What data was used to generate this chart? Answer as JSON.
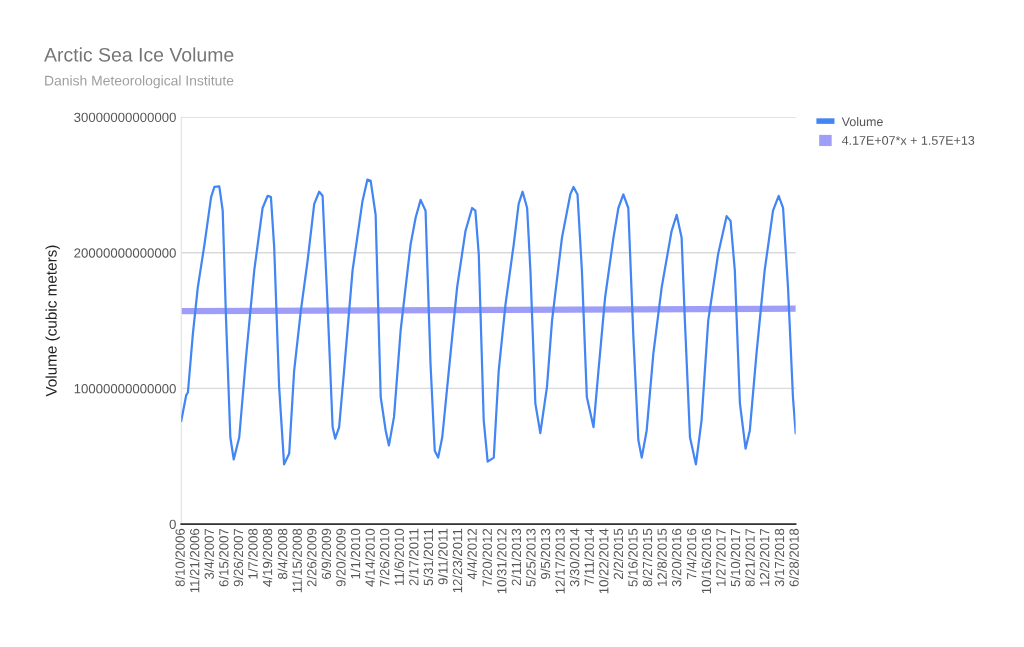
{
  "chart_data": {
    "type": "line",
    "title": "Arctic Sea Ice Volume",
    "subtitle": "Danish Meteorological Institute",
    "ylabel": "Volume (cubic meters)",
    "ylim": [
      0,
      30000000000000
    ],
    "yticks": [
      0,
      10000000000000,
      20000000000000,
      30000000000000
    ],
    "xlim": [
      "2006-08-10",
      "2018-07-01"
    ],
    "xticks": [
      {
        "value": "2006-08-10",
        "label": "8/10/2006"
      },
      {
        "value": "2006-11-21",
        "label": "11/21/2006"
      },
      {
        "value": "2007-03-04",
        "label": "3/4/2007"
      },
      {
        "value": "2007-06-15",
        "label": "6/15/2007"
      },
      {
        "value": "2007-09-26",
        "label": "9/26/2007"
      },
      {
        "value": "2008-01-07",
        "label": "1/7/2008"
      },
      {
        "value": "2008-04-19",
        "label": "4/19/2008"
      },
      {
        "value": "2008-08-04",
        "label": "8/4/2008"
      },
      {
        "value": "2008-11-15",
        "label": "11/15/2008"
      },
      {
        "value": "2009-02-26",
        "label": "2/26/2009"
      },
      {
        "value": "2009-06-09",
        "label": "6/9/2009"
      },
      {
        "value": "2009-09-20",
        "label": "9/20/2009"
      },
      {
        "value": "2010-01-01",
        "label": "1/1/2010"
      },
      {
        "value": "2010-04-14",
        "label": "4/14/2010"
      },
      {
        "value": "2010-07-26",
        "label": "7/26/2010"
      },
      {
        "value": "2010-11-06",
        "label": "11/6/2010"
      },
      {
        "value": "2011-02-17",
        "label": "2/17/2011"
      },
      {
        "value": "2011-05-31",
        "label": "5/31/2011"
      },
      {
        "value": "2011-09-11",
        "label": "9/11/2011"
      },
      {
        "value": "2011-12-23",
        "label": "12/23/2011"
      },
      {
        "value": "2012-04-04",
        "label": "4/4/2012"
      },
      {
        "value": "2012-07-20",
        "label": "7/20/2012"
      },
      {
        "value": "2012-10-31",
        "label": "10/31/2012"
      },
      {
        "value": "2013-02-11",
        "label": "2/11/2013"
      },
      {
        "value": "2013-05-25",
        "label": "5/25/2013"
      },
      {
        "value": "2013-09-05",
        "label": "9/5/2013"
      },
      {
        "value": "2013-12-17",
        "label": "12/17/2013"
      },
      {
        "value": "2014-03-30",
        "label": "3/30/2014"
      },
      {
        "value": "2014-07-11",
        "label": "7/11/2014"
      },
      {
        "value": "2014-10-22",
        "label": "10/22/2014"
      },
      {
        "value": "2015-02-02",
        "label": "2/2/2015"
      },
      {
        "value": "2015-05-16",
        "label": "5/16/2015"
      },
      {
        "value": "2015-08-27",
        "label": "8/27/2015"
      },
      {
        "value": "2015-12-08",
        "label": "12/8/2015"
      },
      {
        "value": "2016-03-20",
        "label": "3/20/2016"
      },
      {
        "value": "2016-07-04",
        "label": "7/4/2016"
      },
      {
        "value": "2016-10-16",
        "label": "10/16/2016"
      },
      {
        "value": "2017-01-27",
        "label": "1/27/2017"
      },
      {
        "value": "2017-05-10",
        "label": "5/10/2017"
      },
      {
        "value": "2017-08-21",
        "label": "8/21/2017"
      },
      {
        "value": "2017-12-02",
        "label": "12/2/2017"
      },
      {
        "value": "2018-03-17",
        "label": "3/17/2018"
      },
      {
        "value": "2018-06-28",
        "label": "6/28/2018"
      }
    ],
    "grid": "y",
    "legend": "right",
    "marker": "none",
    "line_style": "solid",
    "series": [
      {
        "name": "Volume",
        "color": "#4285f4",
        "x": [
          "2006-08-10",
          "2006-09-14",
          "2006-09-26",
          "2006-10-31",
          "2006-12-05",
          "2007-01-21",
          "2007-03-09",
          "2007-04-01",
          "2007-05-06",
          "2007-05-30",
          "2007-06-23",
          "2007-07-23",
          "2007-08-16",
          "2007-09-24",
          "2007-11-11",
          "2008-01-08",
          "2008-03-07",
          "2008-04-12",
          "2008-05-05",
          "2008-05-28",
          "2008-07-02",
          "2008-08-06",
          "2008-09-11",
          "2008-10-16",
          "2008-12-02",
          "2009-01-19",
          "2009-03-07",
          "2009-04-11",
          "2009-05-05",
          "2009-06-09",
          "2009-07-15",
          "2009-08-02",
          "2009-08-30",
          "2009-10-04",
          "2009-12-03",
          "2010-02-11",
          "2010-03-18",
          "2010-04-10",
          "2010-05-15",
          "2010-06-20",
          "2010-07-25",
          "2010-08-17",
          "2010-09-22",
          "2010-11-08",
          "2011-01-17",
          "2011-02-22",
          "2011-03-29",
          "2011-05-03",
          "2011-06-07",
          "2011-07-07",
          "2011-07-31",
          "2011-08-29",
          "2011-10-03",
          "2011-12-12",
          "2012-02-09",
          "2012-03-27",
          "2012-04-19",
          "2012-05-13",
          "2012-06-17",
          "2012-07-15",
          "2012-08-27",
          "2012-10-01",
          "2012-11-18",
          "2013-01-15",
          "2013-02-19",
          "2013-03-19",
          "2013-04-20",
          "2013-05-13",
          "2013-06-17",
          "2013-07-22",
          "2013-09-07",
          "2013-10-13",
          "2013-12-22",
          "2014-02-19",
          "2014-03-14",
          "2014-04-11",
          "2014-05-12",
          "2014-06-16",
          "2014-08-02",
          "2014-09-06",
          "2014-10-23",
          "2014-12-21",
          "2015-01-25",
          "2015-03-01",
          "2015-04-05",
          "2015-05-11",
          "2015-06-15",
          "2015-07-09",
          "2015-08-13",
          "2015-09-29",
          "2015-11-27",
          "2016-02-05",
          "2016-03-12",
          "2016-04-16",
          "2016-05-09",
          "2016-06-14",
          "2016-07-26",
          "2016-09-04",
          "2016-10-21",
          "2016-12-30",
          "2017-02-28",
          "2017-03-28",
          "2017-04-27",
          "2017-06-02",
          "2017-07-12",
          "2017-08-11",
          "2017-09-27",
          "2017-11-24",
          "2018-01-22",
          "2018-03-03",
          "2018-04-03",
          "2018-05-08",
          "2018-06-12",
          "2018-07-01"
        ],
        "values": [
          7600000000000.0,
          9500000000000.0,
          9700000000000.0,
          14000000000000.0,
          17450000000000.0,
          20600000000000.0,
          24100000000000.0,
          24850000000000.0,
          24900000000000.0,
          23100000000000.0,
          15000000000000.0,
          6400000000000.0,
          4760000000000.0,
          6400000000000.0,
          12300000000000.0,
          18700000000000.0,
          23300000000000.0,
          24200000000000.0,
          24100000000000.0,
          20400000000000.0,
          10100000000000.0,
          4400000000000.0,
          5200000000000.0,
          11300000000000.0,
          15700000000000.0,
          19400000000000.0,
          23600000000000.0,
          24500000000000.0,
          24200000000000.0,
          16200000000000.0,
          7150000000000.0,
          6300000000000.0,
          7150000000000.0,
          11300000000000.0,
          18700000000000.0,
          23800000000000.0,
          25400000000000.0,
          25300000000000.0,
          22800000000000.0,
          9360000000000.0,
          6900000000000.0,
          5800000000000.0,
          7900000000000.0,
          14300000000000.0,
          20600000000000.0,
          22600000000000.0,
          23900000000000.0,
          23100000000000.0,
          11800000000000.0,
          5400000000000.0,
          4900000000000.0,
          6400000000000.0,
          10100000000000.0,
          17450000000000.0,
          21600000000000.0,
          23300000000000.0,
          23100000000000.0,
          19900000000000.0,
          7650000000000.0,
          4600000000000.0,
          4900000000000.0,
          11300000000000.0,
          16200000000000.0,
          20600000000000.0,
          23600000000000.0,
          24500000000000.0,
          23300000000000.0,
          18700000000000.0,
          8900000000000.0,
          6700000000000.0,
          10100000000000.0,
          15000000000000.0,
          21100000000000.0,
          24300000000000.0,
          24850000000000.0,
          24300000000000.0,
          18700000000000.0,
          9360000000000.0,
          7150000000000.0,
          11300000000000.0,
          16700000000000.0,
          21100000000000.0,
          23300000000000.0,
          24300000000000.0,
          23300000000000.0,
          13800000000000.0,
          6200000000000.0,
          4900000000000.0,
          6900000000000.0,
          12550000000000.0,
          17450000000000.0,
          21600000000000.0,
          22800000000000.0,
          21100000000000.0,
          15000000000000.0,
          6400000000000.0,
          4400000000000.0,
          7650000000000.0,
          15000000000000.0,
          19900000000000.0,
          22700000000000.0,
          22350000000000.0,
          18700000000000.0,
          8900000000000.0,
          5560000000000.0,
          6900000000000.0,
          12550000000000.0,
          18700000000000.0,
          23100000000000.0,
          24200000000000.0,
          23300000000000.0,
          17450000000000.0,
          9360000000000.0,
          6700000000000.0
        ]
      },
      {
        "name": "4.17E+07*x + 1.57E+13",
        "color": "#9e9ef8",
        "x": [
          "2006-08-10",
          "2018-07-01"
        ],
        "values": [
          15700000000000.0,
          15880000000000.0
        ]
      }
    ]
  }
}
